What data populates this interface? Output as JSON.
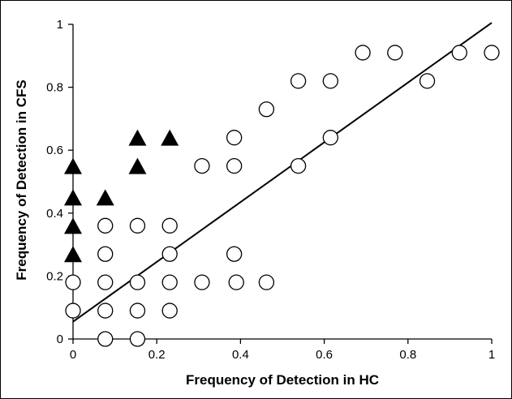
{
  "chart_data": {
    "type": "scatter",
    "title": "",
    "xlabel": "Frequency of Detection in HC",
    "ylabel": "Frequency of Detection in CFS",
    "xlim": [
      0,
      1
    ],
    "ylim": [
      0,
      1
    ],
    "x_ticks": [
      "0",
      "0.2",
      "0.4",
      "0.6",
      "0.8",
      "1"
    ],
    "y_ticks": [
      "0",
      "0.2",
      "0.4",
      "0.6",
      "0.8",
      "1"
    ],
    "grid": false,
    "legend": "none",
    "series": [
      {
        "marker": "open-circle",
        "points": [
          [
            0,
            0.18
          ],
          [
            0,
            0.09
          ],
          [
            0.077,
            0.36
          ],
          [
            0.077,
            0.27
          ],
          [
            0.077,
            0.18
          ],
          [
            0.077,
            0.09
          ],
          [
            0.077,
            0
          ],
          [
            0.154,
            0.36
          ],
          [
            0.154,
            0.18
          ],
          [
            0.154,
            0.09
          ],
          [
            0.154,
            0
          ],
          [
            0.231,
            0.36
          ],
          [
            0.231,
            0.27
          ],
          [
            0.231,
            0.18
          ],
          [
            0.231,
            0.09
          ],
          [
            0.308,
            0.55
          ],
          [
            0.308,
            0.18
          ],
          [
            0.385,
            0.64
          ],
          [
            0.385,
            0.55
          ],
          [
            0.385,
            0.27
          ],
          [
            0.39,
            0.18
          ],
          [
            0.462,
            0.73
          ],
          [
            0.462,
            0.18
          ],
          [
            0.538,
            0.82
          ],
          [
            0.538,
            0.55
          ],
          [
            0.615,
            0.82
          ],
          [
            0.615,
            0.64
          ],
          [
            0.692,
            0.91
          ],
          [
            0.769,
            0.91
          ],
          [
            0.846,
            0.82
          ],
          [
            0.923,
            0.91
          ],
          [
            1.0,
            0.91
          ]
        ]
      },
      {
        "marker": "filled-triangle",
        "points": [
          [
            0,
            0.55
          ],
          [
            0,
            0.45
          ],
          [
            0,
            0.36
          ],
          [
            0,
            0.27
          ],
          [
            0.077,
            0.45
          ],
          [
            0.154,
            0.64
          ],
          [
            0.154,
            0.55
          ],
          [
            0.231,
            0.64
          ]
        ]
      }
    ],
    "trendline": {
      "x": [
        0,
        1
      ],
      "y": [
        0.055,
        1.005
      ]
    }
  }
}
